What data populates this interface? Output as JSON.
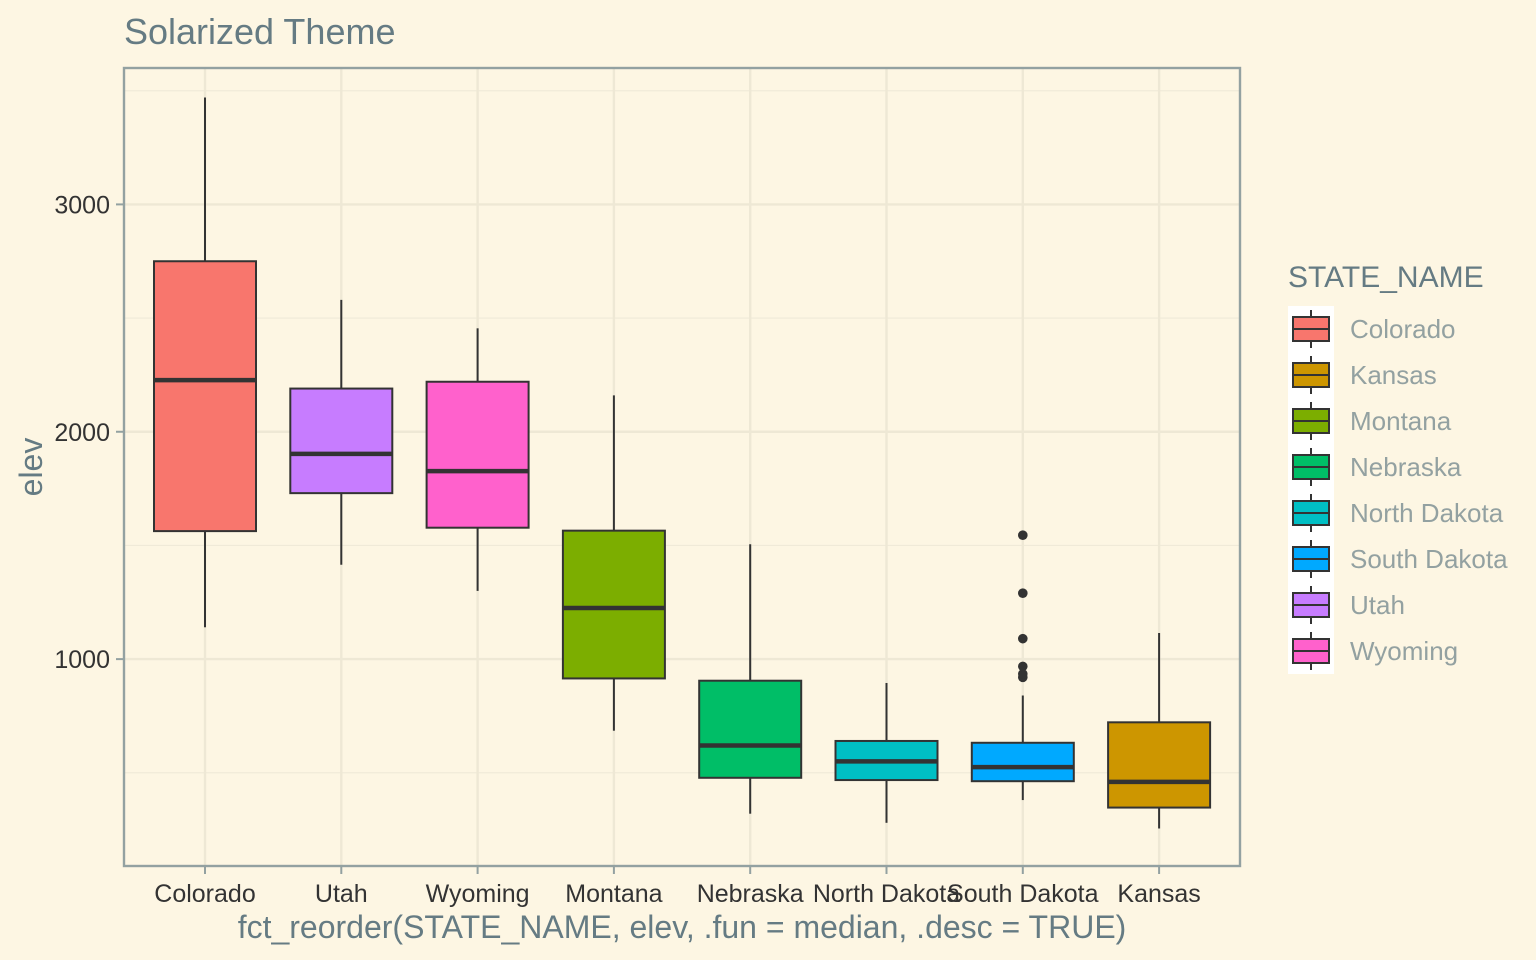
{
  "chart_data": {
    "type": "boxplot",
    "title": "Solarized Theme",
    "xlabel": "fct_reorder(STATE_NAME, elev, .fun = median, .desc = TRUE)",
    "ylabel": "elev",
    "ylim": [
      90,
      3600
    ],
    "y_ticks": [
      1000,
      2000,
      3000
    ],
    "grid": true,
    "legend": {
      "title": "STATE_NAME",
      "position": "right"
    },
    "categories": [
      "Colorado",
      "Utah",
      "Wyoming",
      "Montana",
      "Nebraska",
      "North Dakota",
      "South Dakota",
      "Kansas"
    ],
    "boxes": [
      {
        "name": "Colorado",
        "color": "#F8766D",
        "min": 1140,
        "q1": 1563,
        "median": 2227,
        "q3": 2750,
        "max": 3470,
        "outliers": []
      },
      {
        "name": "Utah",
        "color": "#C77CFF",
        "min": 1415,
        "q1": 1730,
        "median": 1903,
        "q3": 2190,
        "max": 2580,
        "outliers": []
      },
      {
        "name": "Wyoming",
        "color": "#FF61CC",
        "min": 1300,
        "q1": 1578,
        "median": 1827,
        "q3": 2220,
        "max": 2455,
        "outliers": []
      },
      {
        "name": "Montana",
        "color": "#7CAE00",
        "min": 685,
        "q1": 915,
        "median": 1225,
        "q3": 1565,
        "max": 2160,
        "outliers": []
      },
      {
        "name": "Nebraska",
        "color": "#00BE67",
        "min": 320,
        "q1": 478,
        "median": 620,
        "q3": 905,
        "max": 1505,
        "outliers": []
      },
      {
        "name": "North Dakota",
        "color": "#00BFC4",
        "min": 280,
        "q1": 468,
        "median": 550,
        "q3": 640,
        "max": 895,
        "outliers": []
      },
      {
        "name": "South Dakota",
        "color": "#00A9FF",
        "min": 380,
        "q1": 463,
        "median": 525,
        "q3": 632,
        "max": 840,
        "outliers": [
          920,
          935,
          968,
          1090,
          1290,
          1545
        ]
      },
      {
        "name": "Kansas",
        "color": "#CD9600",
        "min": 255,
        "q1": 347,
        "median": 460,
        "q3": 722,
        "max": 1115,
        "outliers": []
      }
    ],
    "legend_items": [
      {
        "label": "Colorado",
        "color": "#F8766D"
      },
      {
        "label": "Kansas",
        "color": "#CD9600"
      },
      {
        "label": "Montana",
        "color": "#7CAE00"
      },
      {
        "label": "Nebraska",
        "color": "#00BE67"
      },
      {
        "label": "North Dakota",
        "color": "#00BFC4"
      },
      {
        "label": "South Dakota",
        "color": "#00A9FF"
      },
      {
        "label": "Utah",
        "color": "#C77CFF"
      },
      {
        "label": "Wyoming",
        "color": "#FF61CC"
      }
    ]
  }
}
